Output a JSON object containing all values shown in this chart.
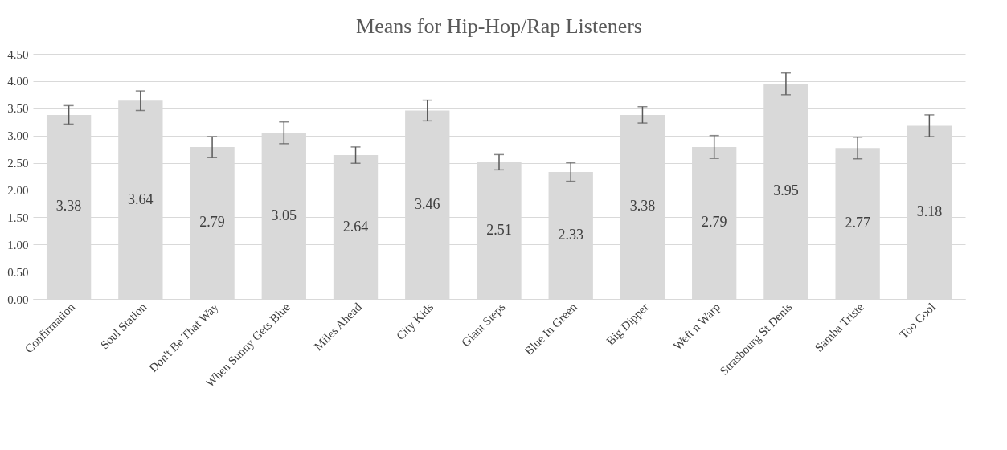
{
  "chart_data": {
    "type": "bar",
    "title": "Means for Hip-Hop/Rap Listeners",
    "categories": [
      "Confirmation",
      "Soul Station",
      "Don't Be That Way",
      "When Sunny Gets Blue",
      "Miles Ahead",
      "City Kids",
      "Giant Steps",
      "Blue In Green",
      "Big Dipper",
      "Weft n Warp",
      "Strasbourg St Denis",
      "Samba Triste",
      "Too Cool"
    ],
    "values": [
      3.38,
      3.64,
      2.79,
      3.05,
      2.64,
      3.46,
      2.51,
      2.33,
      3.38,
      2.79,
      3.95,
      2.77,
      3.18
    ],
    "errors": [
      0.17,
      0.18,
      0.19,
      0.2,
      0.15,
      0.19,
      0.14,
      0.17,
      0.15,
      0.21,
      0.2,
      0.2,
      0.2
    ],
    "color": "#d9d9d9",
    "ylim": [
      0,
      4.5
    ],
    "yticks": [
      {
        "value": 0,
        "label": "0.00"
      },
      {
        "value": 0.5,
        "label": "0.50"
      },
      {
        "value": 1,
        "label": "1.00"
      },
      {
        "value": 1.5,
        "label": "1.50"
      },
      {
        "value": 2,
        "label": "2.00"
      },
      {
        "value": 2.5,
        "label": "2.50"
      },
      {
        "value": 3,
        "label": "3.00"
      },
      {
        "value": 3.5,
        "label": "3.50"
      },
      {
        "value": 4,
        "label": "4.00"
      },
      {
        "value": 4.5,
        "label": "4.50"
      }
    ],
    "grid": "y",
    "data_labels": true
  }
}
